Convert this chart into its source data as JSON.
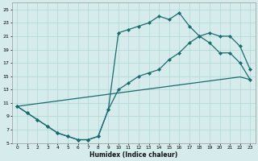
{
  "xlabel": "Humidex (Indice chaleur)",
  "bg_color": "#d6ecec",
  "grid_color": "#b8d8d8",
  "line_color": "#1a6b6b",
  "xlim": [
    -0.5,
    23.5
  ],
  "ylim": [
    5,
    26
  ],
  "xticks": [
    0,
    1,
    2,
    3,
    4,
    5,
    6,
    7,
    8,
    9,
    10,
    11,
    12,
    13,
    14,
    15,
    16,
    17,
    18,
    19,
    20,
    21,
    22,
    23
  ],
  "yticks": [
    5,
    7,
    9,
    11,
    13,
    15,
    17,
    19,
    21,
    23,
    25
  ],
  "line_upper_x": [
    0,
    1,
    2,
    3,
    4,
    5,
    6,
    7,
    8,
    9,
    10,
    11,
    12,
    13,
    14,
    15,
    16,
    17,
    18,
    19,
    20,
    21,
    22,
    23
  ],
  "line_upper_y": [
    10.5,
    9.5,
    8.5,
    7.5,
    6.5,
    6.0,
    5.5,
    5.5,
    6.0,
    10.0,
    21.5,
    22.0,
    22.5,
    23.0,
    24.0,
    23.5,
    24.5,
    22.5,
    21.0,
    20.0,
    18.5,
    18.5,
    17.0,
    14.5
  ],
  "line_lower_x": [
    0,
    1,
    2,
    3,
    4,
    5,
    6,
    7,
    8,
    9,
    10,
    11,
    12,
    13,
    14,
    15,
    16,
    17,
    18,
    19,
    20,
    21,
    22,
    23
  ],
  "line_lower_y": [
    10.5,
    9.5,
    8.5,
    7.5,
    6.5,
    6.0,
    5.5,
    5.5,
    6.0,
    10.0,
    13.0,
    14.0,
    15.0,
    15.5,
    16.0,
    17.5,
    18.5,
    20.0,
    21.0,
    21.5,
    21.0,
    21.0,
    19.5,
    16.0
  ],
  "line_diag_x": [
    0,
    1,
    2,
    3,
    4,
    5,
    6,
    7,
    8,
    9,
    10,
    11,
    12,
    13,
    14,
    15,
    16,
    17,
    18,
    19,
    20,
    21,
    22,
    23
  ],
  "line_diag_y": [
    10.5,
    10.7,
    10.9,
    11.1,
    11.3,
    11.5,
    11.7,
    11.9,
    12.1,
    12.3,
    12.5,
    12.7,
    12.9,
    13.1,
    13.3,
    13.5,
    13.7,
    13.9,
    14.1,
    14.3,
    14.5,
    14.7,
    14.9,
    14.5
  ]
}
